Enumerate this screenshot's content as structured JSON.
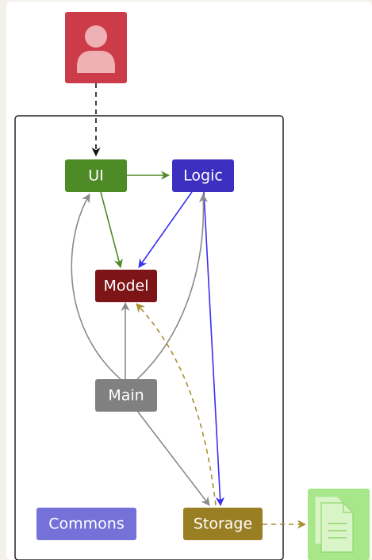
{
  "nodes": {
    "ui": {
      "label": "UI",
      "color": "#4e8a26"
    },
    "logic": {
      "label": "Logic",
      "color": "#3d2fbf"
    },
    "model": {
      "label": "Model",
      "color": "#7d1416"
    },
    "main": {
      "label": "Main",
      "color": "#808080"
    },
    "commons": {
      "label": "Commons",
      "color": "#7471d9"
    },
    "storage": {
      "label": "Storage",
      "color": "#9a7e24"
    }
  },
  "colors": {
    "user_box": "#cc3b48",
    "user_figure": "#efb0b4",
    "file_box": "#a8e68a",
    "file_figure": "#d9f5c8",
    "arrow_black": "#111111",
    "arrow_green": "#4e8a26",
    "arrow_blue": "#3a2ef0",
    "arrow_gray": "#8a8a8a",
    "arrow_gold": "#a98e2e"
  },
  "icons": {
    "user": "user-icon",
    "file": "file-icon"
  }
}
